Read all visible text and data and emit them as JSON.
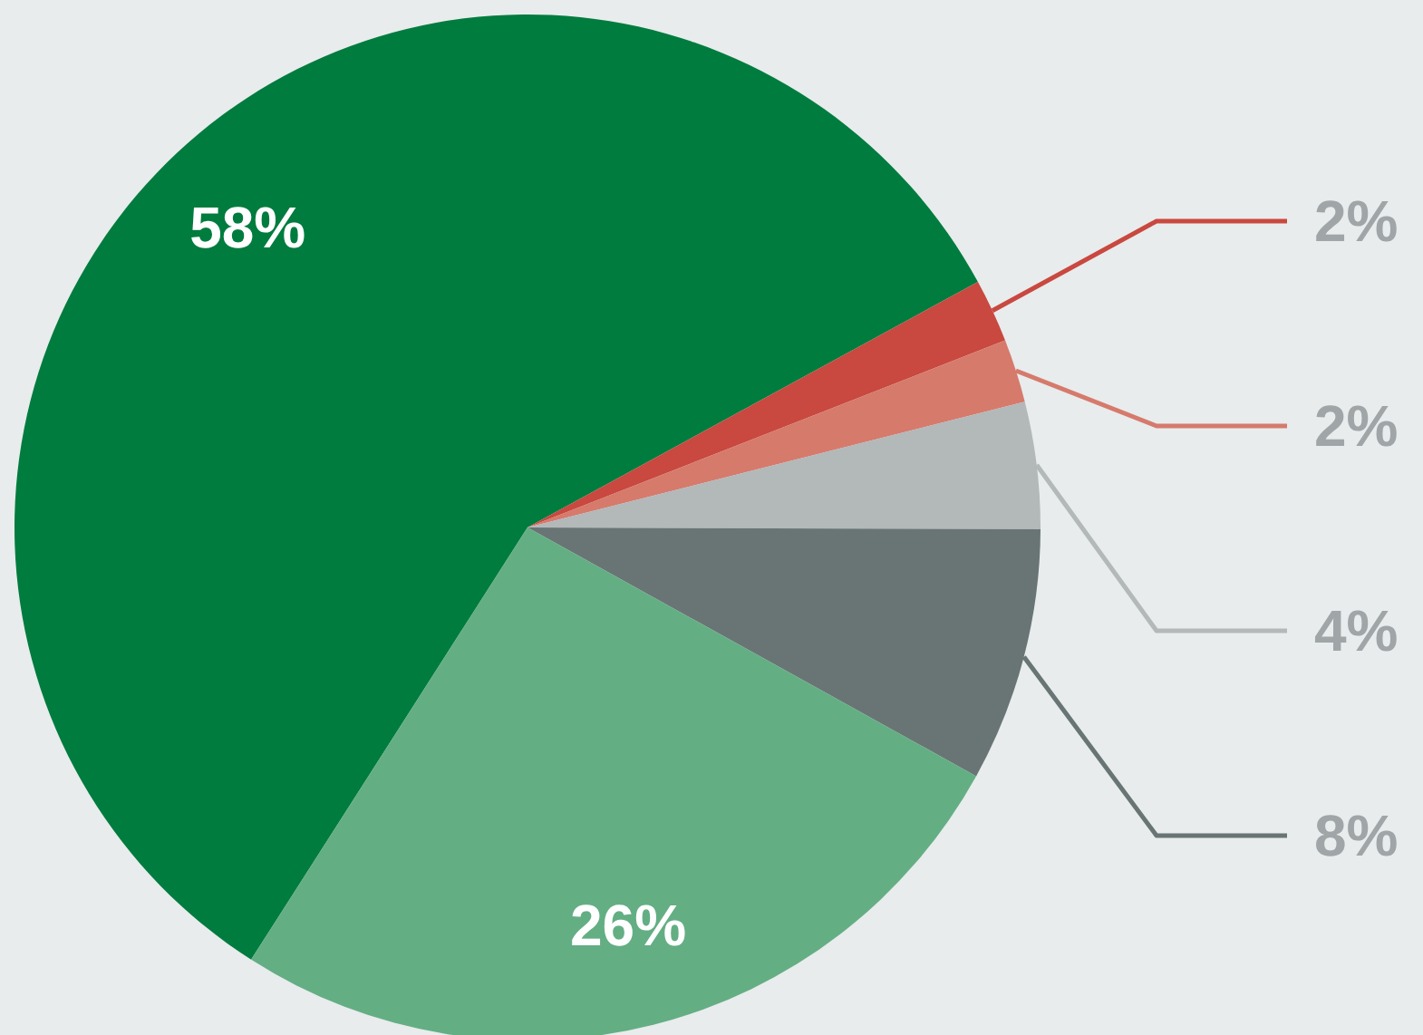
{
  "chart_data": {
    "type": "pie",
    "categories": [
      null,
      null,
      null,
      null,
      null,
      null
    ],
    "values": [
      58,
      2,
      2,
      4,
      8,
      26
    ],
    "colors": [
      "#007c3e",
      "#c9483f",
      "#d67a6c",
      "#b3b8b9",
      "#697574",
      "#64ae84"
    ],
    "value_labels": [
      "58%",
      "2%",
      "2%",
      "4%",
      "8%",
      "26%"
    ]
  }
}
